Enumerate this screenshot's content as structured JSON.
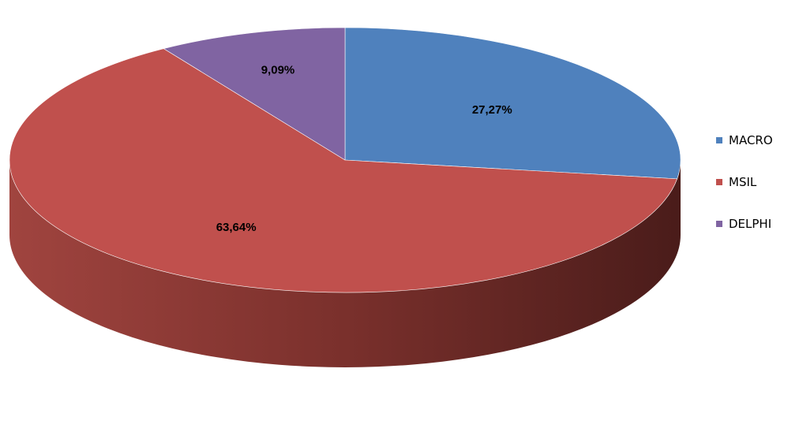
{
  "chart_data": {
    "type": "pie",
    "style": "3d",
    "categories": [
      "MACRO",
      "MSIL",
      "DELPHI"
    ],
    "values": [
      27.27,
      63.64,
      9.09
    ],
    "data_labels": [
      "27,27%",
      "63,64%",
      "9,09%"
    ],
    "colors": [
      "#4F81BD",
      "#C0504D",
      "#8064A2"
    ],
    "legend": {
      "position": "right",
      "entries": [
        "MACRO",
        "MSIL",
        "DELPHI"
      ]
    },
    "start_angle": "12 o'clock",
    "direction": "clockwise"
  }
}
